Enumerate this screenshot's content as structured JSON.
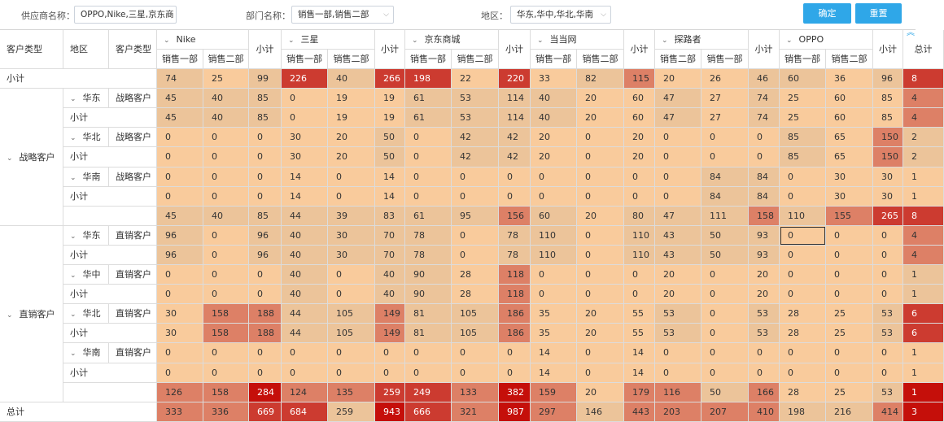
{
  "filters": {
    "supplier": {
      "label": "供应商名称：",
      "value": "OPPO,Nike,三星,京东商"
    },
    "department": {
      "label": "部门名称：",
      "value": "销售一部,销售二部"
    },
    "region": {
      "label": "地区：",
      "value": "华东,华中,华北,华南"
    },
    "confirm_label": "确定",
    "reset_label": "重置"
  },
  "icons": {
    "caret": "⌄",
    "chevron_down": "⌵",
    "collapse_up": "︽"
  },
  "colors": {
    "lightest": "#f9cb9c",
    "light": "#ecc49a",
    "medium": "#dd8066",
    "strong": "#cc3b30",
    "strongest": "#c50f0a",
    "button": "#2fa7e8"
  },
  "header": {
    "row_dims": [
      "客户类型",
      "地区",
      "客户类型"
    ],
    "suppliers": [
      {
        "name": "Nike",
        "subs": [
          "销售一部",
          "销售二部"
        ]
      },
      {
        "name": "三星",
        "subs": [
          "销售一部",
          "销售二部"
        ]
      },
      {
        "name": "京东商城",
        "subs": [
          "销售一部",
          "销售二部"
        ]
      },
      {
        "name": "当当网",
        "subs": [
          "销售一部",
          "销售二部"
        ]
      },
      {
        "name": "探路者",
        "subs": [
          "销售二部",
          "销售一部"
        ]
      },
      {
        "name": "OPPO",
        "subs": [
          "销售一部",
          "销售二部"
        ]
      }
    ],
    "subtotal": "小计",
    "total": "总计"
  },
  "labels": {
    "subtotal": "小计",
    "grand_total": "总计",
    "strategic": "战略客户",
    "direct": "直销客户",
    "east": "华东",
    "north": "华北",
    "south": "华南",
    "central": "华中"
  },
  "rows": [
    {
      "type": "top_subtotal",
      "label": "小计",
      "values": [
        74,
        25,
        99,
        226,
        40,
        266,
        198,
        22,
        220,
        33,
        82,
        115,
        20,
        26,
        46,
        60,
        36,
        96,
        "8"
      ],
      "shade": [
        "l",
        "t",
        "l",
        "s",
        "l",
        "s",
        "s",
        "t",
        "s",
        "t",
        "l",
        "m",
        "t",
        "t",
        "l",
        "l",
        "t",
        "l",
        "s"
      ]
    },
    {
      "type": "region",
      "region": "华东",
      "ctype": "战略客户",
      "values": [
        45,
        40,
        85,
        0,
        19,
        19,
        61,
        53,
        114,
        40,
        20,
        60,
        47,
        27,
        74,
        25,
        60,
        85,
        "4"
      ],
      "shade": [
        "l",
        "l",
        "l",
        "t",
        "t",
        "t",
        "l",
        "l",
        "l",
        "l",
        "t",
        "t",
        "l",
        "t",
        "l",
        "t",
        "t",
        "t",
        "m"
      ]
    },
    {
      "type": "sub",
      "label": "小计",
      "values": [
        45,
        40,
        85,
        0,
        19,
        19,
        61,
        53,
        114,
        40,
        20,
        60,
        47,
        27,
        74,
        25,
        60,
        85,
        "4"
      ],
      "shade": [
        "l",
        "l",
        "l",
        "t",
        "t",
        "t",
        "l",
        "l",
        "l",
        "l",
        "t",
        "t",
        "l",
        "t",
        "l",
        "t",
        "t",
        "t",
        "m"
      ]
    },
    {
      "type": "region",
      "region": "华北",
      "ctype": "战略客户",
      "values": [
        0,
        0,
        0,
        30,
        20,
        50,
        0,
        42,
        42,
        20,
        0,
        20,
        0,
        0,
        0,
        85,
        65,
        150,
        "2"
      ],
      "shade": [
        "t",
        "t",
        "t",
        "t",
        "t",
        "l",
        "t",
        "l",
        "l",
        "t",
        "t",
        "t",
        "t",
        "t",
        "t",
        "l",
        "t",
        "m",
        "l"
      ]
    },
    {
      "type": "sub",
      "label": "小计",
      "values": [
        0,
        0,
        0,
        30,
        20,
        50,
        0,
        42,
        42,
        20,
        0,
        20,
        0,
        0,
        0,
        85,
        65,
        150,
        "2"
      ],
      "shade": [
        "t",
        "t",
        "t",
        "t",
        "t",
        "l",
        "t",
        "l",
        "l",
        "t",
        "t",
        "t",
        "t",
        "t",
        "t",
        "l",
        "t",
        "m",
        "l"
      ]
    },
    {
      "type": "region",
      "region": "华南",
      "ctype": "战略客户",
      "values": [
        0,
        0,
        0,
        14,
        0,
        14,
        0,
        0,
        0,
        0,
        0,
        0,
        0,
        84,
        84,
        0,
        30,
        30,
        "1"
      ],
      "shade": [
        "t",
        "t",
        "t",
        "t",
        "t",
        "t",
        "t",
        "t",
        "t",
        "t",
        "t",
        "t",
        "t",
        "l",
        "l",
        "t",
        "t",
        "t",
        "t"
      ]
    },
    {
      "type": "sub",
      "label": "小计",
      "values": [
        0,
        0,
        0,
        14,
        0,
        14,
        0,
        0,
        0,
        0,
        0,
        0,
        0,
        84,
        84,
        0,
        30,
        30,
        "1"
      ],
      "shade": [
        "t",
        "t",
        "t",
        "t",
        "t",
        "t",
        "t",
        "t",
        "t",
        "t",
        "t",
        "t",
        "t",
        "l",
        "l",
        "t",
        "t",
        "t",
        "t"
      ]
    },
    {
      "type": "group_subtotal",
      "label": "小计",
      "values": [
        45,
        40,
        85,
        44,
        39,
        83,
        61,
        95,
        156,
        60,
        20,
        80,
        47,
        111,
        158,
        110,
        155,
        265,
        "8"
      ],
      "shade": [
        "l",
        "l",
        "l",
        "l",
        "l",
        "l",
        "l",
        "l",
        "m",
        "l",
        "t",
        "l",
        "l",
        "l",
        "m",
        "l",
        "m",
        "s",
        "s"
      ]
    },
    {
      "type": "region",
      "region": "华东",
      "ctype": "直销客户",
      "values": [
        96,
        0,
        96,
        40,
        30,
        70,
        78,
        0,
        78,
        110,
        0,
        110,
        43,
        50,
        93,
        0,
        0,
        0,
        "4"
      ],
      "shade": [
        "l",
        "t",
        "l",
        "l",
        "l",
        "l",
        "l",
        "t",
        "l",
        "l",
        "t",
        "l",
        "l",
        "l",
        "l",
        "t",
        "t",
        "t",
        "m"
      ]
    },
    {
      "type": "sub",
      "label": "小计",
      "values": [
        96,
        0,
        96,
        40,
        30,
        70,
        78,
        0,
        78,
        110,
        0,
        110,
        43,
        50,
        93,
        0,
        0,
        0,
        "4"
      ],
      "shade": [
        "l",
        "t",
        "l",
        "l",
        "l",
        "l",
        "l",
        "t",
        "l",
        "l",
        "t",
        "l",
        "l",
        "l",
        "l",
        "t",
        "t",
        "t",
        "m"
      ]
    },
    {
      "type": "region",
      "region": "华中",
      "ctype": "直销客户",
      "values": [
        0,
        0,
        0,
        40,
        0,
        40,
        90,
        28,
        118,
        0,
        0,
        0,
        20,
        0,
        20,
        0,
        0,
        0,
        "1"
      ],
      "shade": [
        "t",
        "t",
        "t",
        "l",
        "t",
        "l",
        "l",
        "t",
        "m",
        "t",
        "t",
        "t",
        "t",
        "t",
        "t",
        "t",
        "t",
        "t",
        "l"
      ]
    },
    {
      "type": "sub",
      "label": "小计",
      "values": [
        0,
        0,
        0,
        40,
        0,
        40,
        90,
        28,
        118,
        0,
        0,
        0,
        20,
        0,
        20,
        0,
        0,
        0,
        "1"
      ],
      "shade": [
        "t",
        "t",
        "t",
        "l",
        "t",
        "l",
        "l",
        "t",
        "m",
        "t",
        "t",
        "t",
        "t",
        "t",
        "t",
        "t",
        "t",
        "t",
        "l"
      ]
    },
    {
      "type": "region",
      "region": "华北",
      "ctype": "直销客户",
      "values": [
        30,
        158,
        188,
        44,
        105,
        149,
        81,
        105,
        186,
        35,
        20,
        55,
        53,
        0,
        53,
        28,
        25,
        53,
        "6"
      ],
      "shade": [
        "t",
        "m",
        "m",
        "l",
        "l",
        "m",
        "l",
        "l",
        "m",
        "t",
        "t",
        "t",
        "l",
        "t",
        "l",
        "t",
        "t",
        "l",
        "s"
      ]
    },
    {
      "type": "sub",
      "label": "小计",
      "values": [
        30,
        158,
        188,
        44,
        105,
        149,
        81,
        105,
        186,
        35,
        20,
        55,
        53,
        0,
        53,
        28,
        25,
        53,
        "6"
      ],
      "shade": [
        "t",
        "m",
        "m",
        "l",
        "l",
        "m",
        "l",
        "l",
        "m",
        "t",
        "t",
        "t",
        "l",
        "t",
        "l",
        "t",
        "t",
        "l",
        "s"
      ]
    },
    {
      "type": "region",
      "region": "华南",
      "ctype": "直销客户",
      "values": [
        0,
        0,
        0,
        0,
        0,
        0,
        0,
        0,
        0,
        14,
        0,
        14,
        0,
        0,
        0,
        0,
        0,
        0,
        "1"
      ],
      "shade": [
        "t",
        "t",
        "t",
        "t",
        "t",
        "t",
        "t",
        "t",
        "t",
        "t",
        "t",
        "t",
        "t",
        "t",
        "t",
        "t",
        "t",
        "t",
        "t"
      ]
    },
    {
      "type": "sub",
      "label": "小计",
      "values": [
        0,
        0,
        0,
        0,
        0,
        0,
        0,
        0,
        0,
        14,
        0,
        14,
        0,
        0,
        0,
        0,
        0,
        0,
        "1"
      ],
      "shade": [
        "t",
        "t",
        "t",
        "t",
        "t",
        "t",
        "t",
        "t",
        "t",
        "t",
        "t",
        "t",
        "t",
        "t",
        "t",
        "t",
        "t",
        "t",
        "t"
      ]
    },
    {
      "type": "group_subtotal",
      "label": "小计",
      "values": [
        126,
        158,
        284,
        124,
        135,
        259,
        249,
        133,
        382,
        159,
        20,
        179,
        116,
        50,
        166,
        28,
        25,
        53,
        "1"
      ],
      "shade": [
        "m",
        "m",
        "x",
        "m",
        "m",
        "s",
        "s",
        "m",
        "x",
        "m",
        "t",
        "m",
        "m",
        "l",
        "m",
        "t",
        "t",
        "l",
        "x"
      ]
    },
    {
      "type": "grand_total",
      "label": "总计",
      "values": [
        333,
        336,
        669,
        684,
        259,
        943,
        666,
        321,
        987,
        297,
        146,
        443,
        203,
        207,
        410,
        198,
        216,
        414,
        "3"
      ],
      "shade": [
        "m",
        "m",
        "s",
        "s",
        "l",
        "x",
        "s",
        "m",
        "x",
        "m",
        "l",
        "m",
        "m",
        "m",
        "m",
        "l",
        "l",
        "m",
        "x"
      ]
    }
  ],
  "selected_cell": {
    "row": 8,
    "col": 15
  }
}
